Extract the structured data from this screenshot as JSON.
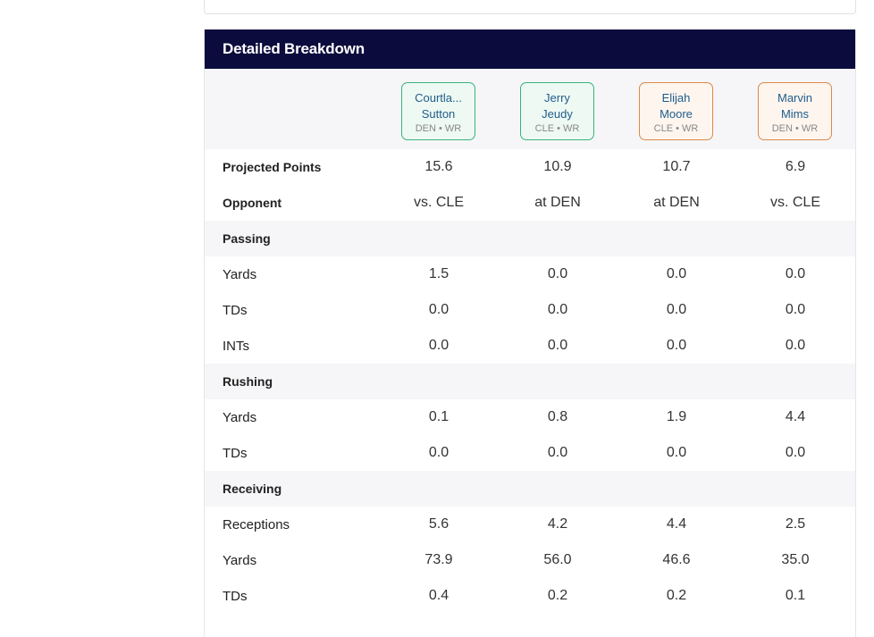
{
  "panel": {
    "title": "Detailed Breakdown"
  },
  "players": [
    {
      "name_line1": "Courtla...",
      "name_line2": "Sutton",
      "meta": "DEN • WR",
      "style": "green"
    },
    {
      "name_line1": "Jerry",
      "name_line2": "Jeudy",
      "meta": "CLE • WR",
      "style": "green"
    },
    {
      "name_line1": "Elijah",
      "name_line2": "Moore",
      "meta": "CLE • WR",
      "style": "orange"
    },
    {
      "name_line1": "Marvin",
      "name_line2": "Mims",
      "meta": "DEN • WR",
      "style": "orange"
    }
  ],
  "rows": [
    {
      "label": "Projected Points",
      "bold": true,
      "shaded": false,
      "values": [
        "15.6",
        "10.9",
        "10.7",
        "6.9"
      ]
    },
    {
      "label": "Opponent",
      "bold": true,
      "shaded": false,
      "values": [
        "vs. CLE",
        "at DEN",
        "at DEN",
        "vs. CLE"
      ]
    },
    {
      "label": "Passing",
      "bold": true,
      "shaded": true,
      "values": [
        "",
        "",
        "",
        ""
      ]
    },
    {
      "label": "Yards",
      "bold": false,
      "shaded": false,
      "values": [
        "1.5",
        "0.0",
        "0.0",
        "0.0"
      ]
    },
    {
      "label": "TDs",
      "bold": false,
      "shaded": false,
      "values": [
        "0.0",
        "0.0",
        "0.0",
        "0.0"
      ]
    },
    {
      "label": "INTs",
      "bold": false,
      "shaded": false,
      "values": [
        "0.0",
        "0.0",
        "0.0",
        "0.0"
      ]
    },
    {
      "label": "Rushing",
      "bold": true,
      "shaded": true,
      "values": [
        "",
        "",
        "",
        ""
      ]
    },
    {
      "label": "Yards",
      "bold": false,
      "shaded": false,
      "values": [
        "0.1",
        "0.8",
        "1.9",
        "4.4"
      ]
    },
    {
      "label": "TDs",
      "bold": false,
      "shaded": false,
      "values": [
        "0.0",
        "0.0",
        "0.0",
        "0.0"
      ]
    },
    {
      "label": "Receiving",
      "bold": true,
      "shaded": true,
      "values": [
        "",
        "",
        "",
        ""
      ]
    },
    {
      "label": "Receptions",
      "bold": false,
      "shaded": false,
      "values": [
        "5.6",
        "4.2",
        "4.4",
        "2.5"
      ]
    },
    {
      "label": "Yards",
      "bold": false,
      "shaded": false,
      "values": [
        "73.9",
        "56.0",
        "46.6",
        "35.0"
      ]
    },
    {
      "label": "TDs",
      "bold": false,
      "shaded": false,
      "values": [
        "0.4",
        "0.2",
        "0.2",
        "0.1"
      ]
    }
  ]
}
